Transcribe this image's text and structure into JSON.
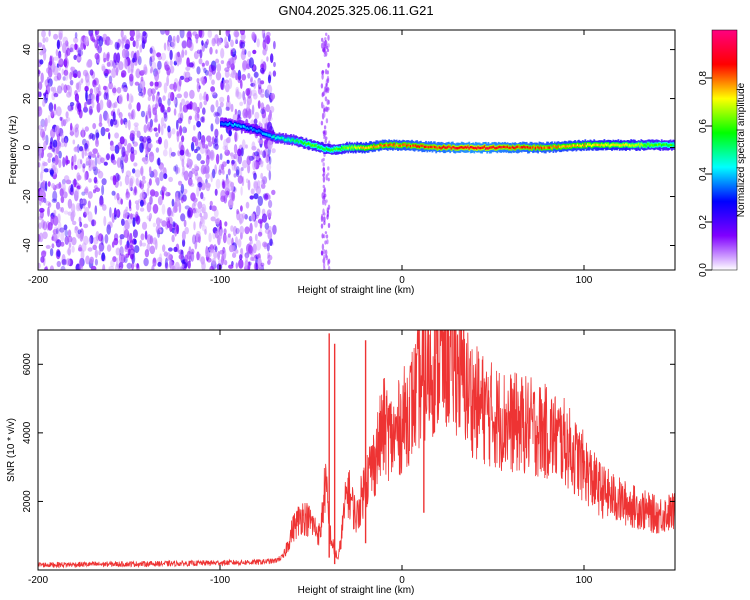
{
  "title": "GN04.2025.325.06.11.G21",
  "chart_data": [
    {
      "type": "heatmap",
      "xlabel": "Height of straight line (km)",
      "ylabel": "Frequency (Hz)",
      "xlim": [
        -200,
        150
      ],
      "ylim": [
        -50,
        48
      ],
      "x_ticks": [
        -200,
        -100,
        0,
        100
      ],
      "y_ticks": [
        -40,
        -20,
        0,
        20,
        40
      ],
      "colorbar": {
        "label": "Normalized spectral amplitude",
        "range": [
          0,
          1
        ],
        "ticks": [
          "0.0",
          "0.2",
          "0.4",
          "0.6",
          "0.8"
        ],
        "colormap": [
          "#ffffff",
          "#8000ff",
          "#0000ff",
          "#00ffff",
          "#00ff00",
          "#ffff00",
          "#ff0000",
          "#ff0080"
        ]
      },
      "noise_region": {
        "x_start": -200,
        "x_end": -70,
        "amplitude": [
          0.05,
          0.25
        ]
      },
      "ridge": {
        "x": [
          -100,
          -90,
          -80,
          -70,
          -60,
          -50,
          -40,
          -30,
          -20,
          -10,
          0,
          20,
          40,
          60,
          80,
          100,
          120,
          150
        ],
        "frequency": [
          10,
          9,
          7,
          4,
          3,
          1,
          -1,
          0,
          0,
          1,
          1,
          0,
          0,
          0,
          0,
          1,
          1,
          1
        ],
        "amplitude": [
          0.35,
          0.4,
          0.35,
          0.45,
          0.5,
          0.6,
          0.55,
          0.65,
          0.75,
          0.8,
          0.8,
          0.85,
          0.9,
          0.85,
          0.8,
          0.75,
          0.7,
          0.55
        ]
      }
    },
    {
      "type": "line",
      "xlabel": "Height of straight line (km)",
      "ylabel": "SNR (10 * v/v)",
      "xlim": [
        -200,
        150
      ],
      "ylim": [
        0,
        7000
      ],
      "x_ticks": [
        -200,
        -100,
        0,
        100
      ],
      "y_ticks": [
        2000,
        4000,
        6000
      ],
      "color": "#ee3333",
      "series": [
        {
          "x": [
            -200,
            -180,
            -160,
            -140,
            -120,
            -100,
            -80,
            -70,
            -65,
            -60,
            -55,
            -50,
            -45,
            -42,
            -40,
            -38,
            -35,
            -30,
            -25,
            -20,
            -15,
            -10,
            -5,
            0,
            5,
            10,
            15,
            20,
            25,
            30,
            35,
            40,
            50,
            60,
            70,
            80,
            90,
            95,
            100,
            105,
            110,
            120,
            130,
            140,
            150
          ],
          "y": [
            150,
            160,
            170,
            180,
            190,
            210,
            230,
            260,
            400,
            1200,
            1600,
            1400,
            1000,
            2600,
            1200,
            700,
            300,
            2400,
            1500,
            2600,
            3200,
            4200,
            3800,
            4300,
            4800,
            5400,
            5800,
            6100,
            6200,
            6000,
            5400,
            4900,
            4500,
            4300,
            4200,
            4000,
            3700,
            3300,
            3000,
            2600,
            2300,
            2000,
            1800,
            1600,
            1700
          ]
        }
      ],
      "spikes": [
        {
          "x": -40,
          "y": 6900
        },
        {
          "x": -37,
          "y": 6600
        },
        {
          "x": -20,
          "y": 6700
        },
        {
          "x": 12,
          "y": 7000
        }
      ]
    }
  ]
}
